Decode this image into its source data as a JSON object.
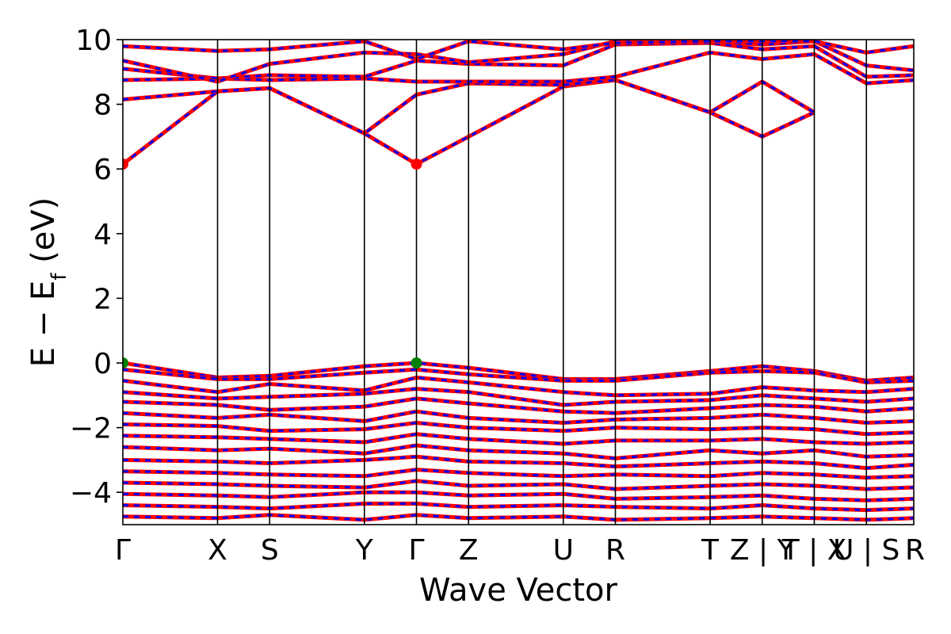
{
  "chart_data": {
    "type": "line",
    "xlabel": "Wave Vector",
    "ylabel": "E − E",
    "ylabel_sub": "f",
    "ylabel_unit": " (eV)",
    "ylim": [
      -5,
      10
    ],
    "y_ticks": [
      -4,
      -2,
      0,
      2,
      4,
      6,
      8,
      10
    ],
    "y_tick_labels": [
      "−4",
      "−2",
      "0",
      "2",
      "4",
      "6",
      "8",
      "10"
    ],
    "k_path": [
      {
        "label": "Γ",
        "x": 0.0
      },
      {
        "label": "X",
        "x": 1.0
      },
      {
        "label": "S",
        "x": 1.55
      },
      {
        "label": "Y",
        "x": 2.55
      },
      {
        "label": "Γ",
        "x": 3.1
      },
      {
        "label": "Z",
        "x": 3.65
      },
      {
        "label": "U",
        "x": 4.65
      },
      {
        "label": "R",
        "x": 5.2
      },
      {
        "label": "T",
        "x": 6.2
      },
      {
        "label": "Z | Y",
        "x": 6.75
      },
      {
        "label": "T | X",
        "x": 7.3
      },
      {
        "label": "U | S",
        "x": 7.85
      },
      {
        "label": "R",
        "x": 8.35
      }
    ],
    "vbm_points": [
      {
        "x": 0.0,
        "y": 0.0
      },
      {
        "x": 3.1,
        "y": 0.0
      }
    ],
    "cbm_points": [
      {
        "x": 0.0,
        "y": 6.15
      },
      {
        "x": 3.1,
        "y": 6.15
      }
    ],
    "colors": {
      "spin_up": "#ff0000",
      "spin_down": "#0000ff",
      "vbm": "#008000",
      "cbm": "#ff0000",
      "kline": "#000000"
    },
    "conduction_bands": [
      [
        [
          0,
          6.15
        ],
        [
          1.0,
          8.4
        ],
        [
          1.55,
          8.5
        ],
        [
          2.55,
          7.1
        ],
        [
          3.1,
          6.15
        ],
        [
          3.65,
          7.0
        ],
        [
          4.65,
          8.55
        ],
        [
          5.2,
          8.75
        ],
        [
          6.2,
          7.75
        ],
        [
          6.75,
          7.0
        ],
        [
          7.3,
          7.75
        ]
      ],
      [
        [
          0,
          8.15
        ],
        [
          1.0,
          8.4
        ],
        [
          1.55,
          8.5
        ],
        [
          2.55,
          7.1
        ],
        [
          3.1,
          8.3
        ],
        [
          3.65,
          8.65
        ],
        [
          4.65,
          8.6
        ],
        [
          5.2,
          8.75
        ],
        [
          6.2,
          7.75
        ],
        [
          6.75,
          8.7
        ],
        [
          7.3,
          7.75
        ]
      ],
      [
        [
          0,
          8.75
        ],
        [
          1.0,
          8.8
        ],
        [
          1.55,
          8.75
        ],
        [
          2.55,
          8.8
        ],
        [
          3.1,
          8.7
        ],
        [
          3.65,
          8.7
        ],
        [
          4.65,
          8.7
        ],
        [
          5.2,
          8.85
        ],
        [
          6.2,
          9.6
        ],
        [
          6.75,
          9.4
        ],
        [
          7.3,
          9.55
        ],
        [
          7.85,
          8.65
        ],
        [
          8.35,
          8.75
        ]
      ],
      [
        [
          0,
          9.1
        ],
        [
          1.0,
          8.8
        ],
        [
          1.55,
          8.9
        ],
        [
          2.55,
          8.85
        ],
        [
          3.1,
          9.35
        ],
        [
          3.65,
          9.25
        ],
        [
          4.65,
          9.2
        ],
        [
          5.2,
          9.85
        ],
        [
          6.2,
          9.9
        ],
        [
          6.75,
          9.7
        ],
        [
          7.3,
          9.8
        ],
        [
          7.85,
          8.85
        ],
        [
          8.35,
          8.9
        ]
      ],
      [
        [
          0,
          9.35
        ],
        [
          1.0,
          8.7
        ],
        [
          1.55,
          9.25
        ],
        [
          2.55,
          9.6
        ],
        [
          3.1,
          9.55
        ],
        [
          3.65,
          9.3
        ],
        [
          4.65,
          9.55
        ],
        [
          5.2,
          9.95
        ],
        [
          6.2,
          9.95
        ],
        [
          6.75,
          9.85
        ],
        [
          7.3,
          9.95
        ],
        [
          7.85,
          9.2
        ],
        [
          8.35,
          9.05
        ]
      ],
      [
        [
          0,
          9.8
        ],
        [
          1.0,
          9.65
        ],
        [
          1.55,
          9.7
        ],
        [
          2.55,
          9.95
        ],
        [
          3.1,
          9.4
        ],
        [
          3.65,
          9.95
        ],
        [
          4.65,
          9.7
        ],
        [
          5.2,
          9.9
        ],
        [
          6.2,
          9.95
        ],
        [
          6.75,
          9.95
        ],
        [
          7.3,
          9.95
        ],
        [
          7.85,
          9.6
        ],
        [
          8.35,
          9.8
        ]
      ]
    ],
    "valence_bands": [
      [
        [
          0,
          0.0
        ],
        [
          1.0,
          -0.45
        ],
        [
          1.55,
          -0.4
        ],
        [
          2.55,
          -0.1
        ],
        [
          3.1,
          0.0
        ],
        [
          3.65,
          -0.15
        ],
        [
          4.65,
          -0.5
        ],
        [
          5.2,
          -0.5
        ],
        [
          6.2,
          -0.25
        ],
        [
          6.75,
          -0.1
        ],
        [
          7.3,
          -0.25
        ],
        [
          7.85,
          -0.55
        ],
        [
          8.35,
          -0.45
        ]
      ],
      [
        [
          0,
          -0.2
        ],
        [
          1.0,
          -0.5
        ],
        [
          1.55,
          -0.5
        ],
        [
          2.55,
          -0.3
        ],
        [
          3.1,
          -0.2
        ],
        [
          3.65,
          -0.35
        ],
        [
          4.65,
          -0.55
        ],
        [
          5.2,
          -0.55
        ],
        [
          6.2,
          -0.3
        ],
        [
          6.75,
          -0.25
        ],
        [
          7.3,
          -0.3
        ],
        [
          7.85,
          -0.6
        ],
        [
          8.35,
          -0.55
        ]
      ],
      [
        [
          0,
          -0.55
        ],
        [
          1.0,
          -0.9
        ],
        [
          1.55,
          -0.65
        ],
        [
          2.55,
          -0.85
        ],
        [
          3.1,
          -0.45
        ],
        [
          3.65,
          -0.6
        ],
        [
          4.65,
          -0.9
        ],
        [
          5.2,
          -1.0
        ],
        [
          6.2,
          -0.95
        ],
        [
          6.75,
          -0.75
        ],
        [
          7.3,
          -0.85
        ],
        [
          7.85,
          -0.9
        ],
        [
          8.35,
          -0.8
        ]
      ],
      [
        [
          0,
          -0.9
        ],
        [
          1.0,
          -1.1
        ],
        [
          1.55,
          -1.05
        ],
        [
          2.55,
          -0.95
        ],
        [
          3.1,
          -0.8
        ],
        [
          3.65,
          -0.9
        ],
        [
          4.65,
          -1.3
        ],
        [
          5.2,
          -1.2
        ],
        [
          6.2,
          -1.15
        ],
        [
          6.75,
          -1.0
        ],
        [
          7.3,
          -1.1
        ],
        [
          7.85,
          -1.2
        ],
        [
          8.35,
          -1.1
        ]
      ],
      [
        [
          0,
          -1.2
        ],
        [
          1.0,
          -1.3
        ],
        [
          1.55,
          -1.45
        ],
        [
          2.55,
          -1.35
        ],
        [
          3.1,
          -1.1
        ],
        [
          3.65,
          -1.25
        ],
        [
          4.65,
          -1.5
        ],
        [
          5.2,
          -1.55
        ],
        [
          6.2,
          -1.4
        ],
        [
          6.75,
          -1.3
        ],
        [
          7.3,
          -1.35
        ],
        [
          7.85,
          -1.5
        ],
        [
          8.35,
          -1.4
        ]
      ],
      [
        [
          0,
          -1.55
        ],
        [
          1.0,
          -1.7
        ],
        [
          1.55,
          -1.6
        ],
        [
          2.55,
          -1.8
        ],
        [
          3.1,
          -1.5
        ],
        [
          3.65,
          -1.7
        ],
        [
          4.65,
          -1.85
        ],
        [
          5.2,
          -1.75
        ],
        [
          6.2,
          -1.7
        ],
        [
          6.75,
          -1.6
        ],
        [
          7.3,
          -1.7
        ],
        [
          7.85,
          -1.85
        ],
        [
          8.35,
          -1.8
        ]
      ],
      [
        [
          0,
          -1.9
        ],
        [
          1.0,
          -1.95
        ],
        [
          1.55,
          -2.1
        ],
        [
          2.55,
          -2.05
        ],
        [
          3.1,
          -1.85
        ],
        [
          3.65,
          -2.0
        ],
        [
          4.65,
          -2.1
        ],
        [
          5.2,
          -2.0
        ],
        [
          6.2,
          -2.05
        ],
        [
          6.75,
          -2.0
        ],
        [
          7.3,
          -2.05
        ],
        [
          7.85,
          -2.2
        ],
        [
          8.35,
          -2.15
        ]
      ],
      [
        [
          0,
          -2.25
        ],
        [
          1.0,
          -2.3
        ],
        [
          1.55,
          -2.35
        ],
        [
          2.55,
          -2.45
        ],
        [
          3.1,
          -2.2
        ],
        [
          3.65,
          -2.35
        ],
        [
          4.65,
          -2.5
        ],
        [
          5.2,
          -2.4
        ],
        [
          6.2,
          -2.4
        ],
        [
          6.75,
          -2.35
        ],
        [
          7.3,
          -2.45
        ],
        [
          7.85,
          -2.5
        ],
        [
          8.35,
          -2.45
        ]
      ],
      [
        [
          0,
          -2.6
        ],
        [
          1.0,
          -2.7
        ],
        [
          1.55,
          -2.65
        ],
        [
          2.55,
          -2.8
        ],
        [
          3.1,
          -2.55
        ],
        [
          3.65,
          -2.7
        ],
        [
          4.65,
          -2.8
        ],
        [
          5.2,
          -2.95
        ],
        [
          6.2,
          -2.7
        ],
        [
          6.75,
          -2.8
        ],
        [
          7.3,
          -2.7
        ],
        [
          7.85,
          -2.9
        ],
        [
          8.35,
          -2.85
        ]
      ],
      [
        [
          0,
          -3.0
        ],
        [
          1.0,
          -3.05
        ],
        [
          1.55,
          -3.1
        ],
        [
          2.55,
          -3.0
        ],
        [
          3.1,
          -2.9
        ],
        [
          3.65,
          -3.05
        ],
        [
          4.65,
          -3.1
        ],
        [
          5.2,
          -3.2
        ],
        [
          6.2,
          -3.1
        ],
        [
          6.75,
          -3.05
        ],
        [
          7.3,
          -3.1
        ],
        [
          7.85,
          -3.25
        ],
        [
          8.35,
          -3.15
        ]
      ],
      [
        [
          0,
          -3.35
        ],
        [
          1.0,
          -3.4
        ],
        [
          1.55,
          -3.45
        ],
        [
          2.55,
          -3.5
        ],
        [
          3.1,
          -3.3
        ],
        [
          3.65,
          -3.4
        ],
        [
          4.65,
          -3.5
        ],
        [
          5.2,
          -3.45
        ],
        [
          6.2,
          -3.5
        ],
        [
          6.75,
          -3.4
        ],
        [
          7.3,
          -3.45
        ],
        [
          7.85,
          -3.55
        ],
        [
          8.35,
          -3.5
        ]
      ],
      [
        [
          0,
          -3.7
        ],
        [
          1.0,
          -3.75
        ],
        [
          1.55,
          -3.8
        ],
        [
          2.55,
          -3.85
        ],
        [
          3.1,
          -3.65
        ],
        [
          3.65,
          -3.8
        ],
        [
          4.65,
          -3.75
        ],
        [
          5.2,
          -3.9
        ],
        [
          6.2,
          -3.8
        ],
        [
          6.75,
          -3.75
        ],
        [
          7.3,
          -3.8
        ],
        [
          7.85,
          -3.9
        ],
        [
          8.35,
          -3.85
        ]
      ],
      [
        [
          0,
          -4.05
        ],
        [
          1.0,
          -4.1
        ],
        [
          1.55,
          -4.15
        ],
        [
          2.55,
          -4.0
        ],
        [
          3.1,
          -4.0
        ],
        [
          3.65,
          -4.1
        ],
        [
          4.65,
          -4.05
        ],
        [
          5.2,
          -4.2
        ],
        [
          6.2,
          -4.15
        ],
        [
          6.75,
          -4.1
        ],
        [
          7.3,
          -4.2
        ],
        [
          7.85,
          -4.25
        ],
        [
          8.35,
          -4.2
        ]
      ],
      [
        [
          0,
          -4.4
        ],
        [
          1.0,
          -4.45
        ],
        [
          1.55,
          -4.5
        ],
        [
          2.55,
          -4.35
        ],
        [
          3.1,
          -4.35
        ],
        [
          3.65,
          -4.45
        ],
        [
          4.65,
          -4.4
        ],
        [
          5.2,
          -4.45
        ],
        [
          6.2,
          -4.5
        ],
        [
          6.75,
          -4.4
        ],
        [
          7.3,
          -4.5
        ],
        [
          7.85,
          -4.55
        ],
        [
          8.35,
          -4.5
        ]
      ],
      [
        [
          0,
          -4.75
        ],
        [
          1.0,
          -4.8
        ],
        [
          1.55,
          -4.7
        ],
        [
          2.55,
          -4.85
        ],
        [
          3.1,
          -4.7
        ],
        [
          3.65,
          -4.8
        ],
        [
          4.65,
          -4.75
        ],
        [
          5.2,
          -4.85
        ],
        [
          6.2,
          -4.8
        ],
        [
          6.75,
          -4.75
        ],
        [
          7.3,
          -4.8
        ],
        [
          7.85,
          -4.85
        ],
        [
          8.35,
          -4.8
        ]
      ]
    ]
  }
}
